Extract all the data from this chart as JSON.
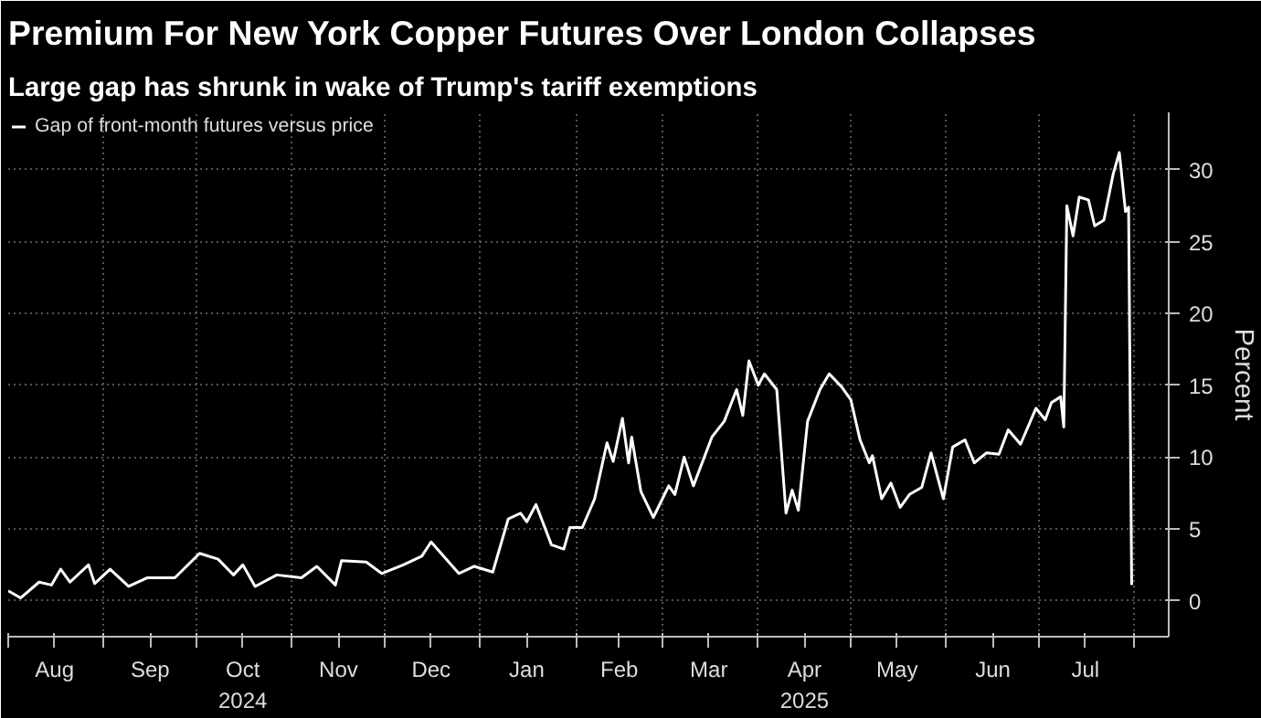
{
  "chart_data": {
    "type": "line",
    "title": "Premium For New York Copper Futures Over London Collapses",
    "subtitle": "Large gap has shrunk in wake of Trump's tariff exemptions",
    "ylabel": "Percent",
    "x": [
      "2024-08-01",
      "2024-08-05",
      "2024-08-11",
      "2024-08-15",
      "2024-08-18",
      "2024-08-21",
      "2024-08-27",
      "2024-08-29",
      "2024-09-03",
      "2024-09-09",
      "2024-09-15",
      "2024-09-24",
      "2024-10-02",
      "2024-10-08",
      "2024-10-13",
      "2024-10-16",
      "2024-10-20",
      "2024-10-27",
      "2024-11-04",
      "2024-11-09",
      "2024-11-15",
      "2024-11-17",
      "2024-11-25",
      "2024-11-30",
      "2024-12-07",
      "2024-12-13",
      "2024-12-16",
      "2024-12-25",
      "2024-12-30",
      "2025-01-05",
      "2025-01-10",
      "2025-01-14",
      "2025-01-16",
      "2025-01-19",
      "2025-01-24",
      "2025-01-28",
      "2025-01-30",
      "2025-02-03",
      "2025-02-07",
      "2025-02-11",
      "2025-02-13",
      "2025-02-16",
      "2025-02-18",
      "2025-02-19",
      "2025-02-22",
      "2025-02-26",
      "2025-03-03",
      "2025-03-05",
      "2025-03-08",
      "2025-03-11",
      "2025-03-17",
      "2025-03-21",
      "2025-03-25",
      "2025-03-27",
      "2025-03-29",
      "2025-04-01",
      "2025-04-03",
      "2025-04-07",
      "2025-04-10",
      "2025-04-12",
      "2025-04-14",
      "2025-04-17",
      "2025-04-21",
      "2025-04-24",
      "2025-04-28",
      "2025-05-01",
      "2025-05-04",
      "2025-05-07",
      "2025-05-08",
      "2025-05-11",
      "2025-05-14",
      "2025-05-17",
      "2025-05-20",
      "2025-05-24",
      "2025-05-27",
      "2025-05-31",
      "2025-06-03",
      "2025-06-07",
      "2025-06-10",
      "2025-06-14",
      "2025-06-18",
      "2025-06-21",
      "2025-06-25",
      "2025-06-30",
      "2025-07-03",
      "2025-07-05",
      "2025-07-08",
      "2025-07-09",
      "2025-07-10",
      "2025-07-12",
      "2025-07-14",
      "2025-07-17",
      "2025-07-19",
      "2025-07-22",
      "2025-07-25",
      "2025-07-27",
      "2025-07-29",
      "2025-07-30",
      "2025-07-31"
    ],
    "series": [
      {
        "name": "Gap of front-month futures versus price",
        "color": "#ffffff",
        "values": [
          0.7,
          0.2,
          1.3,
          1.1,
          2.2,
          1.3,
          2.5,
          1.2,
          2.2,
          1.0,
          1.6,
          1.6,
          3.3,
          2.9,
          1.8,
          2.5,
          1.0,
          1.8,
          1.6,
          2.4,
          1.1,
          2.8,
          2.7,
          1.9,
          2.5,
          3.1,
          4.1,
          1.9,
          2.4,
          2.0,
          5.7,
          6.1,
          5.5,
          6.7,
          3.9,
          3.6,
          5.1,
          5.1,
          7.1,
          11.0,
          9.7,
          12.7,
          9.6,
          11.4,
          7.6,
          5.8,
          8.0,
          7.4,
          10.0,
          8.0,
          11.4,
          12.5,
          14.7,
          12.9,
          16.7,
          15.0,
          15.8,
          14.7,
          6.1,
          7.7,
          6.3,
          12.5,
          14.7,
          15.8,
          14.9,
          14.0,
          11.2,
          9.6,
          10.1,
          7.1,
          8.2,
          6.5,
          7.4,
          7.9,
          10.3,
          7.1,
          10.7,
          11.2,
          9.6,
          10.3,
          10.2,
          11.9,
          10.9,
          13.4,
          12.6,
          13.8,
          14.2,
          12.1,
          27.5,
          25.4,
          28.1,
          27.9,
          26.1,
          26.5,
          29.7,
          31.2,
          27.1,
          27.4,
          1.1
        ]
      }
    ],
    "xlim": [
      "2024-08-01",
      "2025-08-12"
    ],
    "xticks": [
      {
        "value": "2024-08-01",
        "label": null
      },
      {
        "value": "2024-08-16",
        "label": "Aug"
      },
      {
        "value": "2024-09-01",
        "label": null
      },
      {
        "value": "2024-09-16",
        "label": "Sep"
      },
      {
        "value": "2024-10-01",
        "label": null
      },
      {
        "value": "2024-10-16",
        "label": "Oct\n2024"
      },
      {
        "value": "2024-11-01",
        "label": null
      },
      {
        "value": "2024-11-16",
        "label": "Nov"
      },
      {
        "value": "2024-12-01",
        "label": null
      },
      {
        "value": "2024-12-16",
        "label": "Dec"
      },
      {
        "value": "2025-01-01",
        "label": null
      },
      {
        "value": "2025-01-16",
        "label": "Jan"
      },
      {
        "value": "2025-02-01",
        "label": null
      },
      {
        "value": "2025-02-15",
        "label": "Feb"
      },
      {
        "value": "2025-03-01",
        "label": null
      },
      {
        "value": "2025-03-16",
        "label": "Mar"
      },
      {
        "value": "2025-04-01",
        "label": null
      },
      {
        "value": "2025-04-16",
        "label": "Apr\n2025"
      },
      {
        "value": "2025-05-01",
        "label": null
      },
      {
        "value": "2025-05-16",
        "label": "May"
      },
      {
        "value": "2025-06-01",
        "label": null
      },
      {
        "value": "2025-06-16",
        "label": "Jun"
      },
      {
        "value": "2025-07-01",
        "label": null
      },
      {
        "value": "2025-07-16",
        "label": "Jul"
      },
      {
        "value": "2025-08-01",
        "label": null
      }
    ],
    "ylim": [
      -2.5,
      34
    ],
    "yticks": [
      0,
      5,
      10,
      15,
      20,
      25,
      30
    ],
    "grid": true,
    "legend": "top left",
    "line_style": "solid"
  }
}
